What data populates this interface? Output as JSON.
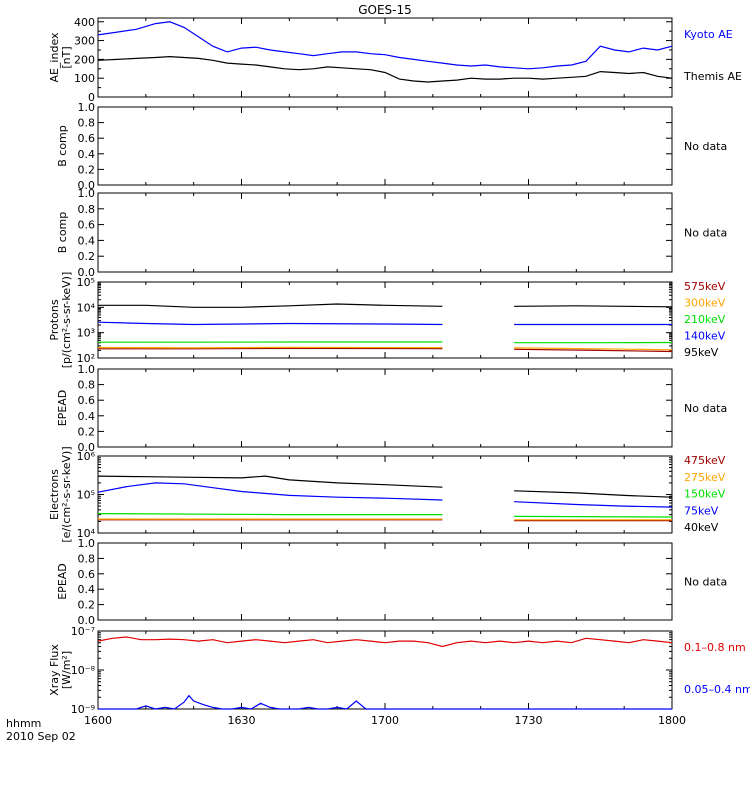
{
  "chart_data": {
    "title": "GOES-15",
    "type": "line",
    "x_axis": {
      "tick_labels": [
        "1600",
        "1630",
        "1700",
        "1730",
        "1800"
      ],
      "tick_values": [
        0,
        30,
        60,
        90,
        120
      ],
      "range": [
        0,
        120
      ],
      "corner_label": "hhmm",
      "date_label": "2010 Sep 02"
    },
    "panels": [
      {
        "id": "ae",
        "type": "line",
        "ylabel": [
          "AE_index",
          "[nT]"
        ],
        "ylim": [
          0,
          420
        ],
        "ytick_labels": [
          "0",
          "100",
          "200",
          "300",
          "400"
        ],
        "ytick_values": [
          0,
          100,
          200,
          300,
          400
        ],
        "series": [
          {
            "name": "Kyoto AE",
            "color": "#0000ff",
            "x": [
              0,
              4,
              8,
              12,
              15,
              18,
              21,
              24,
              27,
              30,
              33,
              36,
              39,
              42,
              45,
              48,
              51,
              54,
              57,
              60,
              63,
              66,
              69,
              72,
              75,
              78,
              81,
              84,
              87,
              90,
              93,
              96,
              99,
              102,
              105,
              108,
              111,
              114,
              117,
              120
            ],
            "y": [
              330,
              345,
              360,
              390,
              400,
              370,
              320,
              270,
              240,
              260,
              265,
              250,
              240,
              230,
              220,
              230,
              240,
              240,
              230,
              225,
              210,
              200,
              190,
              180,
              170,
              165,
              170,
              160,
              155,
              150,
              155,
              165,
              170,
              190,
              270,
              250,
              240,
              260,
              250,
              270
            ]
          },
          {
            "name": "Themis AE",
            "color": "#000000",
            "x": [
              0,
              4,
              8,
              12,
              15,
              18,
              21,
              24,
              27,
              30,
              33,
              36,
              39,
              42,
              45,
              48,
              51,
              54,
              57,
              60,
              63,
              66,
              69,
              72,
              75,
              78,
              81,
              84,
              87,
              90,
              93,
              96,
              99,
              102,
              105,
              108,
              111,
              114,
              117,
              120
            ],
            "y": [
              195,
              200,
              205,
              210,
              215,
              210,
              205,
              195,
              180,
              175,
              170,
              160,
              150,
              145,
              150,
              160,
              155,
              150,
              145,
              130,
              95,
              85,
              80,
              85,
              90,
              100,
              95,
              95,
              100,
              100,
              95,
              100,
              105,
              110,
              135,
              130,
              125,
              130,
              110,
              100
            ]
          }
        ]
      },
      {
        "id": "bcomp1",
        "type": "empty",
        "ylabel": [
          "B comp"
        ],
        "ylim": [
          0,
          1
        ],
        "ytick_labels": [
          "0.0",
          "0.2",
          "0.4",
          "0.6",
          "0.8",
          "1.0"
        ],
        "ytick_values": [
          0,
          0.2,
          0.4,
          0.6,
          0.8,
          1.0
        ],
        "nodata_label": "No data"
      },
      {
        "id": "bcomp2",
        "type": "empty",
        "ylabel": [
          "B comp"
        ],
        "ylim": [
          0,
          1
        ],
        "ytick_labels": [
          "0.0",
          "0.2",
          "0.4",
          "0.6",
          "0.8",
          "1.0"
        ],
        "ytick_values": [
          0,
          0.2,
          0.4,
          0.6,
          0.8,
          1.0
        ],
        "nodata_label": "No data"
      },
      {
        "id": "protons",
        "type": "line",
        "scale": "log",
        "ylabel": [
          "Protons",
          "[p/(cm²-s-sr-keV)]"
        ],
        "ylim": [
          100,
          100000
        ],
        "ytick_labels": [
          "10²",
          "10³",
          "10⁴",
          "10⁵"
        ],
        "ytick_values": [
          100,
          1000,
          10000,
          100000
        ],
        "gap": [
          72,
          87
        ],
        "series": [
          {
            "name": "575keV",
            "color": "#a00000",
            "y_segments": [
              {
                "x": [
                  0,
                  20,
                  40,
                  72
                ],
                "y": [
                  230,
                  230,
                  240,
                  235
                ]
              },
              {
                "x": [
                  87,
                  105,
                  120
                ],
                "y": [
                  220,
                  200,
                  180
                ]
              }
            ]
          },
          {
            "name": "300keV",
            "color": "#ffa500",
            "y_segments": [
              {
                "x": [
                  0,
                  20,
                  40,
                  72
                ],
                "y": [
                  260,
                  250,
                  265,
                  255
                ]
              },
              {
                "x": [
                  87,
                  105,
                  120
                ],
                "y": [
                  250,
                  230,
                  210
                ]
              }
            ]
          },
          {
            "name": "210keV",
            "color": "#00e000",
            "y_segments": [
              {
                "x": [
                  0,
                  20,
                  40,
                  72
                ],
                "y": [
                  420,
                  420,
                  430,
                  430
                ]
              },
              {
                "x": [
                  87,
                  105,
                  120
                ],
                "y": [
                  400,
                  400,
                  410
                ]
              }
            ]
          },
          {
            "name": "140keV",
            "color": "#0000ff",
            "y_segments": [
              {
                "x": [
                  0,
                  10,
                  20,
                  40,
                  60,
                  72
                ],
                "y": [
                  2600,
                  2300,
                  2100,
                  2300,
                  2200,
                  2100
                ]
              },
              {
                "x": [
                  87,
                  105,
                  120
                ],
                "y": [
                  2100,
                  2100,
                  2100
                ]
              }
            ]
          },
          {
            "name": "95keV",
            "color": "#000000",
            "y_segments": [
              {
                "x": [
                  0,
                  10,
                  20,
                  30,
                  40,
                  50,
                  60,
                  72
                ],
                "y": [
                  12000,
                  12000,
                  10000,
                  10000,
                  11500,
                  13500,
                  12000,
                  11000
                ]
              },
              {
                "x": [
                  87,
                  100,
                  110,
                  120
                ],
                "y": [
                  11000,
                  11500,
                  11000,
                  10500
                ]
              }
            ]
          }
        ]
      },
      {
        "id": "epead1",
        "type": "empty",
        "ylabel": [
          "EPEAD"
        ],
        "ylim": [
          0,
          1
        ],
        "ytick_labels": [
          "0.0",
          "0.2",
          "0.4",
          "0.6",
          "0.8",
          "1.0"
        ],
        "ytick_values": [
          0,
          0.2,
          0.4,
          0.6,
          0.8,
          1.0
        ],
        "nodata_label": "No data"
      },
      {
        "id": "electrons",
        "type": "line",
        "scale": "log",
        "ylabel": [
          "Electrons",
          "[e/(cm²-s-sr-keV)]"
        ],
        "ylim": [
          10000,
          1000000
        ],
        "ytick_labels": [
          "10⁴",
          "10⁵",
          "10⁶"
        ],
        "ytick_values": [
          10000,
          100000,
          1000000
        ],
        "gap": [
          72,
          87
        ],
        "series": [
          {
            "name": "475keV",
            "color": "#a00000",
            "y_segments": [
              {
                "x": [
                  0,
                  72
                ],
                "y": [
                  22000,
                  22000
                ]
              },
              {
                "x": [
                  87,
                  120
                ],
                "y": [
                  21000,
                  21000
                ]
              }
            ]
          },
          {
            "name": "275keV",
            "color": "#ffa500",
            "y_segments": [
              {
                "x": [
                  0,
                  72
                ],
                "y": [
                  23000,
                  23000
                ]
              },
              {
                "x": [
                  87,
                  120
                ],
                "y": [
                  22000,
                  22000
                ]
              }
            ]
          },
          {
            "name": "150keV",
            "color": "#00e000",
            "y_segments": [
              {
                "x": [
                  0,
                  40,
                  72
                ],
                "y": [
                  32000,
                  30000,
                  30000
                ]
              },
              {
                "x": [
                  87,
                  120
                ],
                "y": [
                  27000,
                  26000
                ]
              }
            ]
          },
          {
            "name": "75keV",
            "color": "#0000ff",
            "y_segments": [
              {
                "x": [
                  0,
                  6,
                  12,
                  18,
                  24,
                  30,
                  40,
                  50,
                  60,
                  72
                ],
                "y": [
                  115000,
                  160000,
                  200000,
                  190000,
                  150000,
                  120000,
                  95000,
                  85000,
                  80000,
                  72000
                ]
              },
              {
                "x": [
                  87,
                  100,
                  110,
                  120
                ],
                "y": [
                  65000,
                  55000,
                  50000,
                  47000
                ]
              }
            ]
          },
          {
            "name": "40keV",
            "color": "#000000",
            "y_segments": [
              {
                "x": [
                  0,
                  10,
                  20,
                  30,
                  35,
                  40,
                  50,
                  60,
                  72
                ],
                "y": [
                  300000,
                  290000,
                  280000,
                  270000,
                  300000,
                  240000,
                  200000,
                  180000,
                  155000
                ]
              },
              {
                "x": [
                  87,
                  100,
                  110,
                  120
                ],
                "y": [
                  125000,
                  110000,
                  95000,
                  85000
                ]
              }
            ]
          }
        ]
      },
      {
        "id": "epead2",
        "type": "empty",
        "ylabel": [
          "EPEAD"
        ],
        "ylim": [
          0,
          1
        ],
        "ytick_labels": [
          "0.0",
          "0.2",
          "0.4",
          "0.6",
          "0.8",
          "1.0"
        ],
        "ytick_values": [
          0,
          0.2,
          0.4,
          0.6,
          0.8,
          1.0
        ],
        "nodata_label": "No data"
      },
      {
        "id": "xray",
        "type": "line",
        "scale": "log",
        "ylabel": [
          "Xray Flux",
          "[W/m²]"
        ],
        "ylim": [
          1e-09,
          1e-07
        ],
        "ytick_labels": [
          "10⁻⁹",
          "10⁻⁸",
          "10⁻⁷"
        ],
        "ytick_values": [
          1e-09,
          1e-08,
          1e-07
        ],
        "series": [
          {
            "name": "0.1–0.8 nm",
            "color": "#e00000",
            "x": [
              0,
              3,
              6,
              9,
              12,
              15,
              18,
              21,
              24,
              27,
              30,
              33,
              36,
              39,
              42,
              45,
              48,
              51,
              54,
              57,
              60,
              63,
              66,
              69,
              72,
              75,
              78,
              81,
              84,
              87,
              90,
              93,
              96,
              99,
              102,
              105,
              108,
              111,
              114,
              117,
              120
            ],
            "y": [
              5.5e-08,
              6.5e-08,
              7e-08,
              6e-08,
              6e-08,
              6.2e-08,
              6e-08,
              5.5e-08,
              6e-08,
              5e-08,
              5.5e-08,
              6e-08,
              5.5e-08,
              5e-08,
              5.5e-08,
              6e-08,
              5e-08,
              5.5e-08,
              6e-08,
              5.5e-08,
              5e-08,
              5.5e-08,
              5.5e-08,
              5e-08,
              4e-08,
              5e-08,
              5.5e-08,
              5e-08,
              5.5e-08,
              5e-08,
              5.5e-08,
              5e-08,
              5.5e-08,
              5e-08,
              6.5e-08,
              6e-08,
              5.5e-08,
              5e-08,
              6e-08,
              5.5e-08,
              5e-08
            ]
          },
          {
            "name": "0.05–0.4 nm",
            "color": "#0000ff",
            "x": [
              0,
              4,
              8,
              10,
              12,
              14,
              16,
              18,
              19,
              20,
              22,
              24,
              26,
              28,
              30,
              32,
              34,
              36,
              38,
              40,
              42,
              44,
              46,
              48,
              50,
              52,
              54,
              56,
              58,
              60,
              62,
              64,
              66,
              68,
              70,
              72,
              74,
              76,
              78,
              80,
              82,
              84,
              86,
              88,
              90,
              92,
              94,
              96,
              98,
              100,
              102,
              104,
              106,
              108,
              110,
              112,
              114,
              116,
              118,
              120
            ],
            "y": [
              1e-09,
              1e-09,
              1e-09,
              1.2e-09,
              1e-09,
              1.1e-09,
              1e-09,
              1.5e-09,
              2.2e-09,
              1.6e-09,
              1.3e-09,
              1.1e-09,
              1e-09,
              1e-09,
              1.1e-09,
              1e-09,
              1.4e-09,
              1.1e-09,
              1e-09,
              1e-09,
              1e-09,
              1.1e-09,
              1e-09,
              1e-09,
              1.1e-09,
              1e-09,
              1.6e-09,
              1e-09,
              1e-09,
              1e-09,
              1e-09,
              1e-09,
              1e-09,
              1e-09,
              1e-09,
              1e-09,
              1e-09,
              1e-09,
              1e-09,
              1e-09,
              1e-09,
              1e-09,
              1e-09,
              1e-09,
              1e-09,
              1e-09,
              1e-09,
              1e-09,
              1e-09,
              1e-09,
              1e-09,
              1e-09,
              1e-09,
              1e-09,
              1e-09,
              1e-09,
              1e-09,
              1e-09,
              1e-09,
              1e-09
            ]
          }
        ]
      }
    ]
  }
}
